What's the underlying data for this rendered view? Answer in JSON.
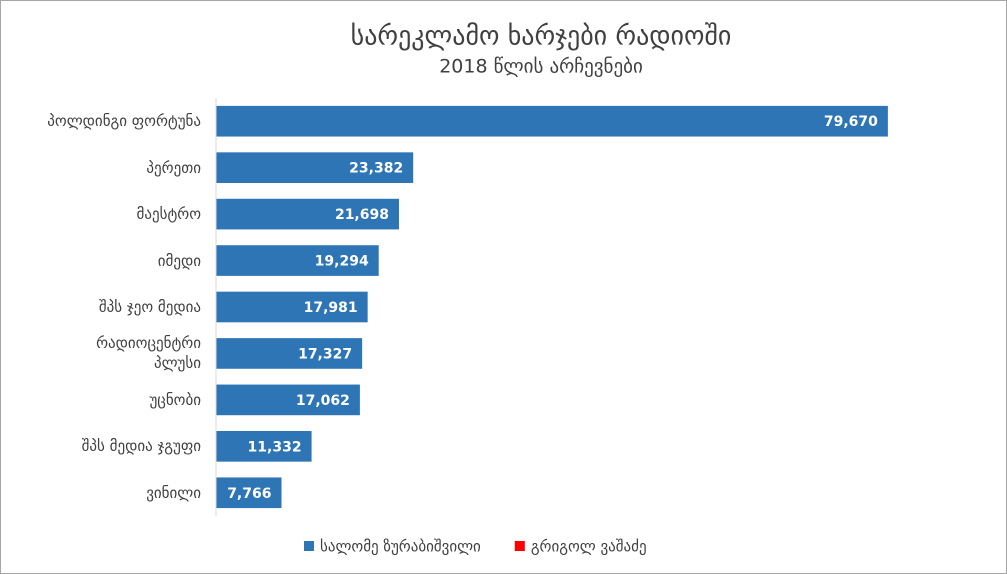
{
  "chart_data": {
    "type": "bar",
    "orientation": "horizontal",
    "title": "სარეკლამო ხარჯები რადიოში",
    "subtitle": "2018 წლის არჩევნები",
    "categories": [
      "პოლდინგი ფორტუნა",
      "პერეთი",
      "მაესტრო",
      "იმედი",
      "შპს ჯეო მედია",
      "რადიოცენტრი\nპლუსი",
      "უცნობი",
      "შპს მედია ჯგუფი",
      "ვინილი"
    ],
    "series": [
      {
        "name": "სალომე ზურაბიშვილი",
        "color": "#2e75b6",
        "values": [
          79670,
          23382,
          21698,
          19294,
          17981,
          17327,
          17062,
          11332,
          7766
        ],
        "value_labels": [
          "79,670",
          "23,382",
          "21,698",
          "19,294",
          "17,981",
          "17,327",
          "17,062",
          "11,332",
          "7,766"
        ]
      },
      {
        "name": "გრიგოლ ვაშაძე",
        "color": "#ff0000",
        "values": [
          null,
          null,
          null,
          null,
          null,
          null,
          null,
          null,
          null
        ]
      }
    ],
    "xlim": [
      0,
      90000
    ],
    "legend": "bottom"
  }
}
